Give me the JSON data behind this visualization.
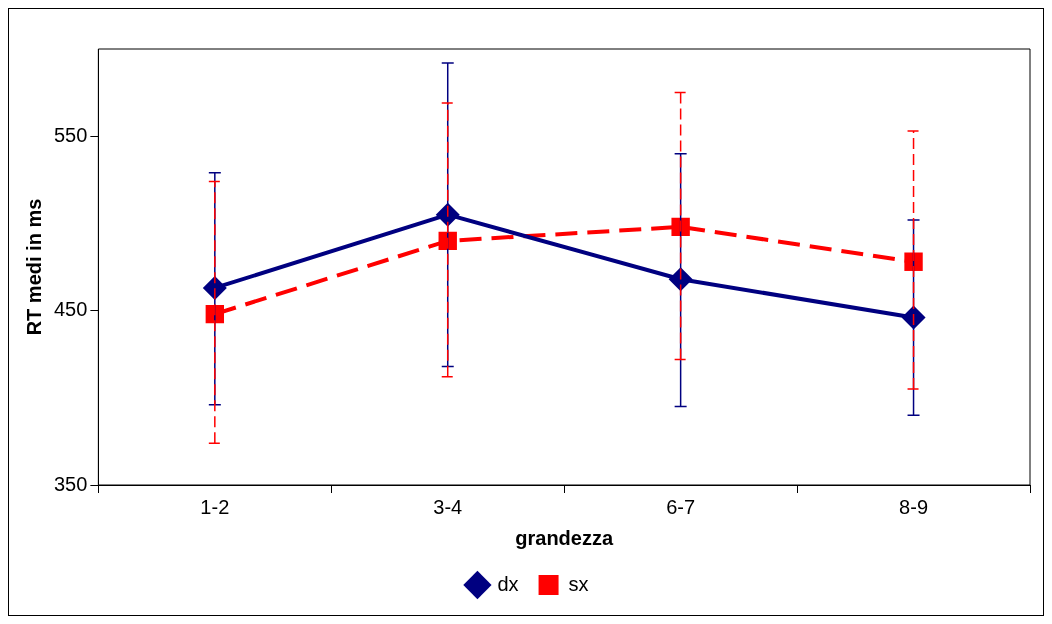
{
  "chart_data": {
    "type": "line",
    "xlabel": "grandezza",
    "ylabel": "RT medi in ms",
    "categories": [
      "1-2",
      "3-4",
      "6-7",
      "8-9"
    ],
    "series": [
      {
        "name": "dx",
        "color": "#000080",
        "marker": "diamond",
        "line_style": "solid",
        "values": [
          463,
          505,
          468,
          446
        ],
        "errors": [
          [
            396,
            529
          ],
          [
            418,
            592
          ],
          [
            395,
            540
          ],
          [
            390,
            502
          ]
        ]
      },
      {
        "name": "sx",
        "color": "#ff0000",
        "marker": "square",
        "line_style": "dashed",
        "values": [
          448,
          490,
          498,
          478
        ],
        "errors": [
          [
            374,
            524
          ],
          [
            412,
            569
          ],
          [
            422,
            575
          ],
          [
            405,
            553
          ]
        ]
      }
    ],
    "ylim": [
      350,
      600
    ],
    "yticks": [
      350,
      450,
      550
    ],
    "grid": false,
    "legend": "bottom"
  }
}
